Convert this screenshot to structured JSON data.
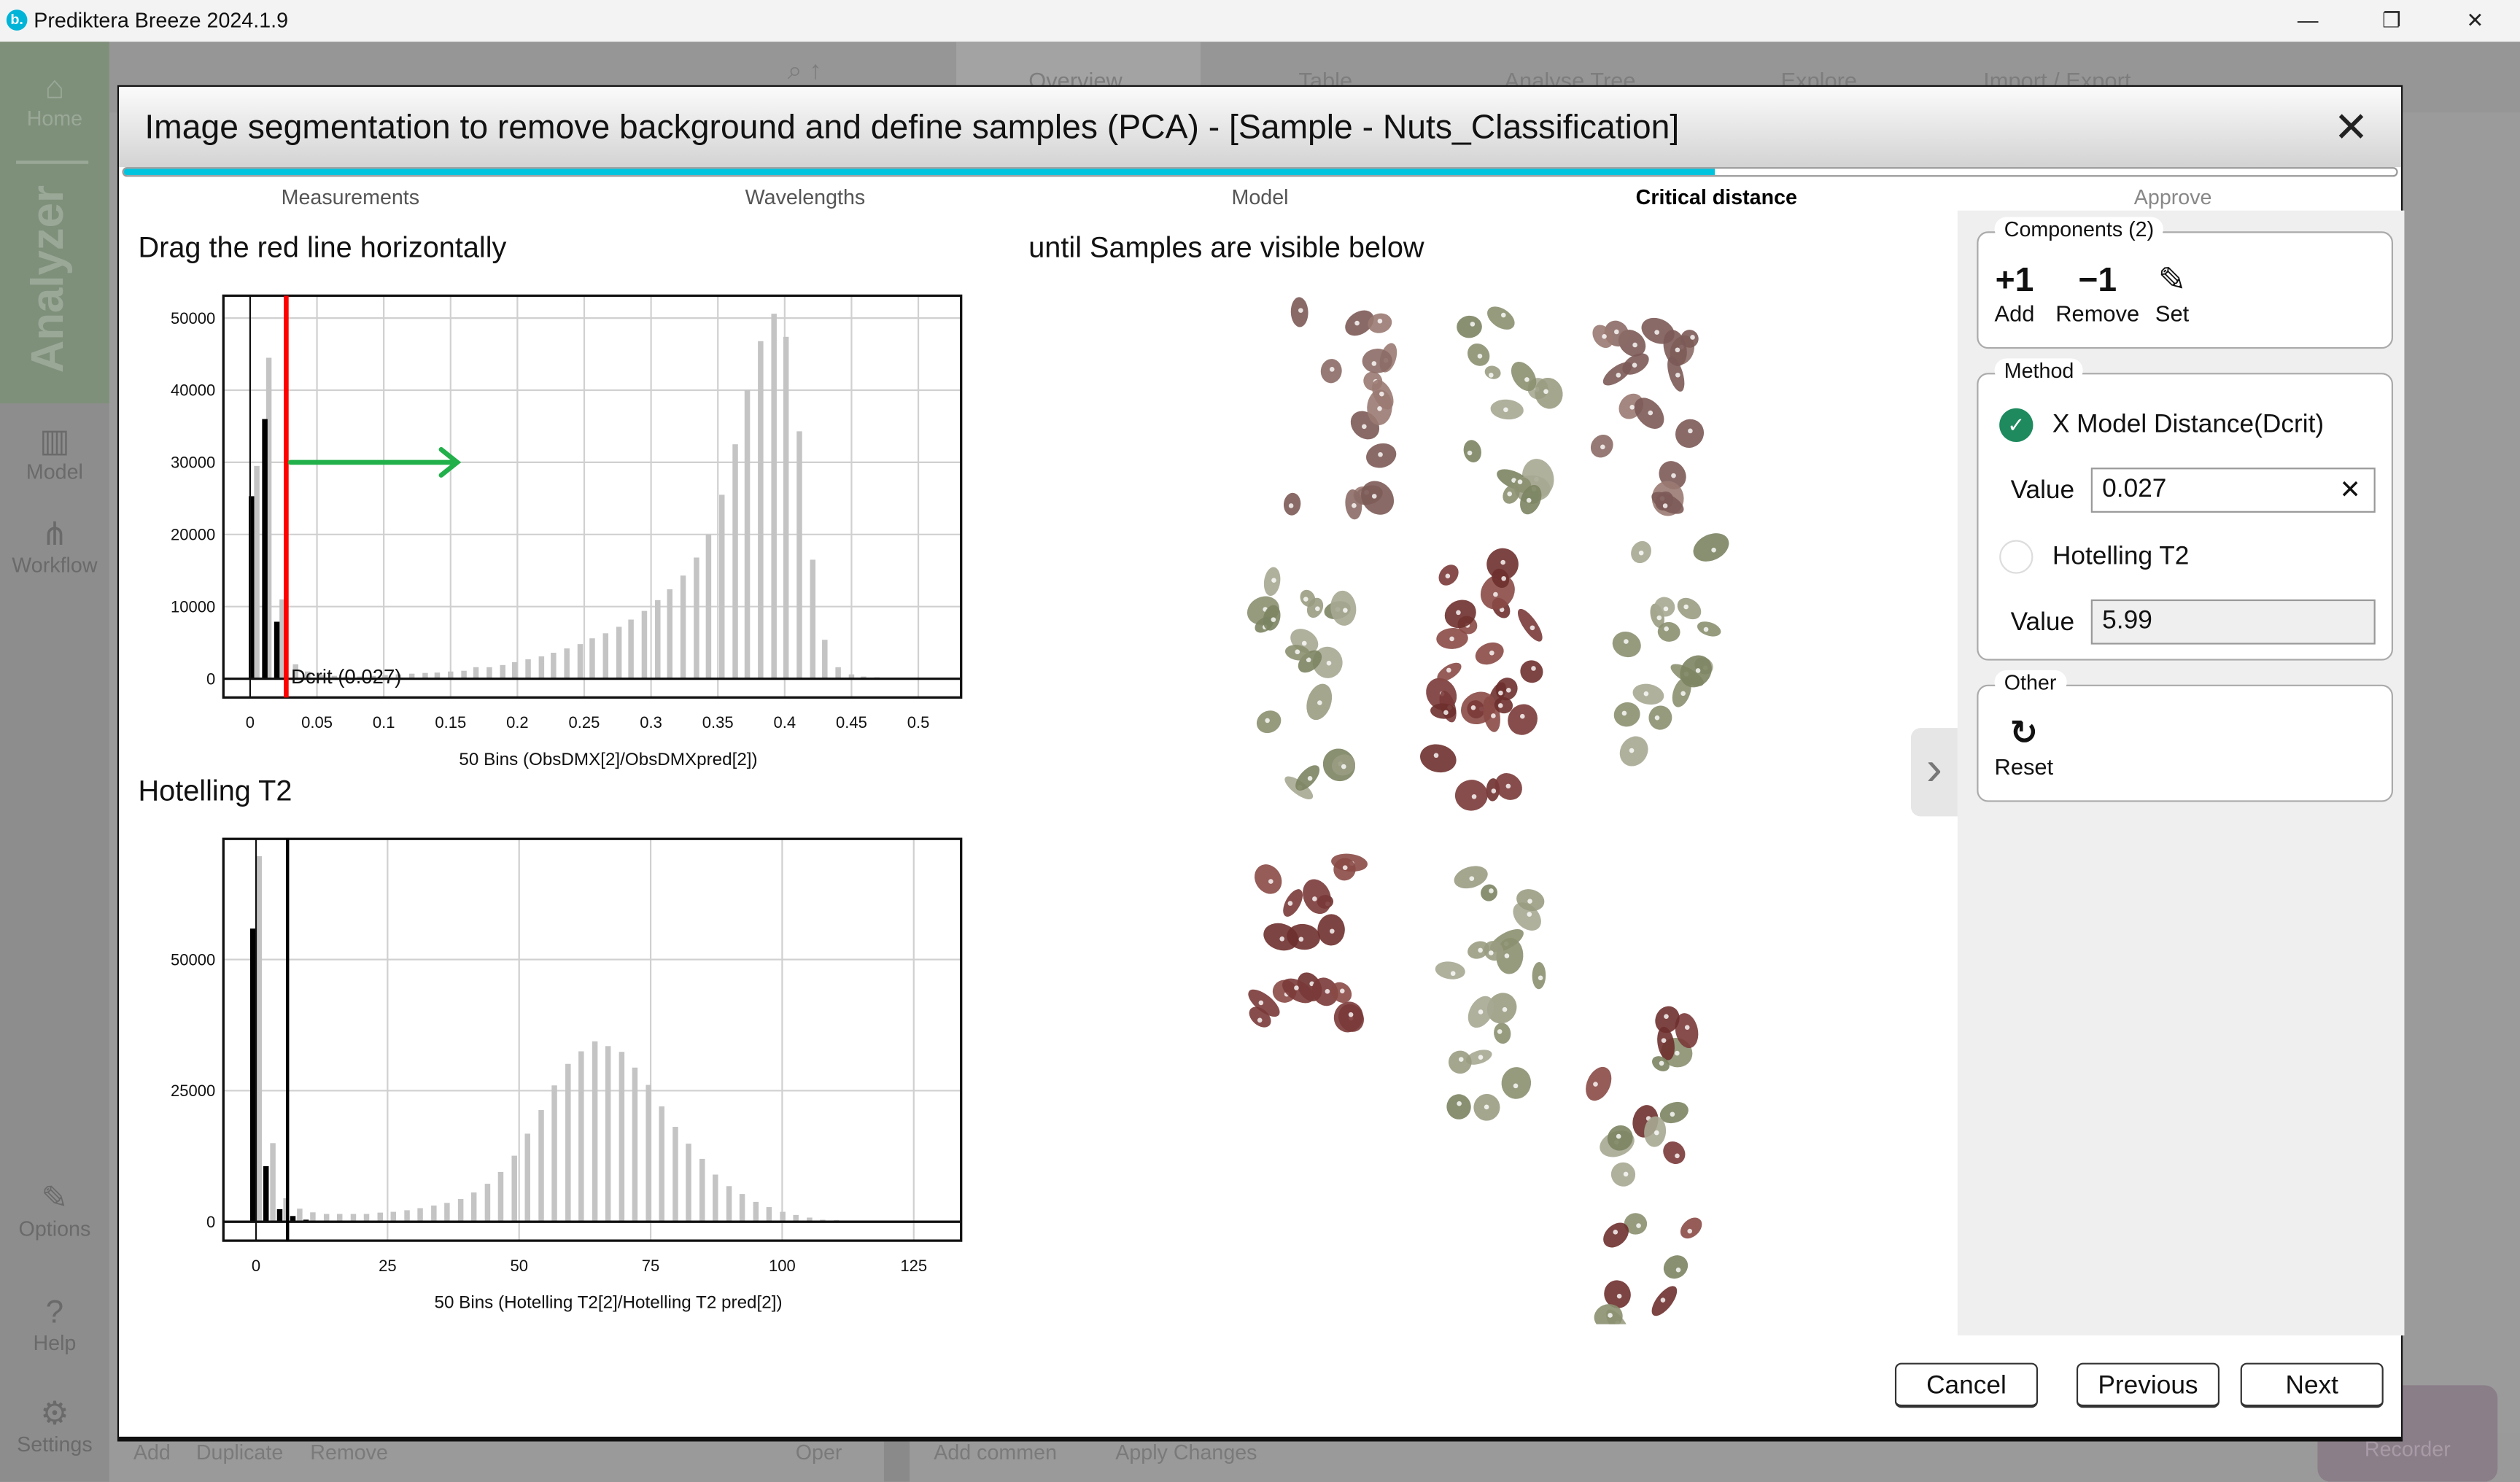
{
  "app": {
    "title": "Prediktera Breeze 2024.1.9",
    "logo_letter": "b.",
    "window_controls": {
      "minimize": "—",
      "maximize": "❐",
      "close": "✕"
    }
  },
  "background_app": {
    "sidebar": [
      {
        "label": "Home",
        "icon": "home-icon",
        "glyph": "⌂"
      },
      {
        "label": "Model",
        "icon": "chart-icon",
        "glyph": "▥"
      },
      {
        "label": "Workflow",
        "icon": "workflow-icon",
        "glyph": "⋔"
      },
      {
        "label": "Options",
        "icon": "pencil-icon",
        "glyph": "✎"
      },
      {
        "label": "Help",
        "icon": "help-icon",
        "glyph": "?"
      },
      {
        "label": "Settings",
        "icon": "gear-icon",
        "glyph": "⚙"
      }
    ],
    "analyzer_label": "Analyzer",
    "tabs": [
      "Overview",
      "Table",
      "Analyse Tree",
      "Explore",
      "Import / Export"
    ],
    "bottom_actions": [
      "Add",
      "Duplicate",
      "Remove",
      "Oper",
      "Add commen",
      "Apply Changes"
    ],
    "recorder_label": "Recorder"
  },
  "dialog": {
    "title": "Image segmentation to remove background and define samples (PCA) - [Sample - Nuts_Classification]",
    "close_glyph": "✕",
    "progress_percent": 70,
    "steps": [
      {
        "label": "Measurements",
        "active": false
      },
      {
        "label": "Wavelengths",
        "active": false
      },
      {
        "label": "Model",
        "active": false
      },
      {
        "label": "Critical distance",
        "active": true
      },
      {
        "label": "Approve",
        "active": false
      }
    ],
    "instruction_left": "Drag the red line horizontally",
    "instruction_right": "until Samples are visible below",
    "hotelling_heading": "Hotelling T2",
    "panel": {
      "components": {
        "label": "Components (2)",
        "add_glyph": "+1",
        "add": "Add",
        "remove_glyph": "−1",
        "remove": "Remove",
        "set_glyph": "✎",
        "set": "Set"
      },
      "method": {
        "label": "Method",
        "option1": "X Model Distance(Dcrit)",
        "option1_selected": true,
        "value1_label": "Value",
        "value1": "0.027",
        "clear_glyph": "✕",
        "option2": "Hotelling T2",
        "option2_selected": false,
        "value2_label": "Value",
        "value2": "5.99"
      },
      "other": {
        "label": "Other",
        "reset_glyph": "↻",
        "reset": "Reset"
      },
      "expand_glyph": "›"
    },
    "buttons": {
      "cancel": "Cancel",
      "previous": "Previous",
      "next": "Next"
    },
    "colors": {
      "accent": "#00c3dd",
      "selected_radio": "#1e8a5e",
      "crit_line": "#ff0000",
      "arrow": "#22b04a"
    }
  },
  "chart_data": [
    {
      "type": "bar",
      "xlabel": "50 Bins (ObsDMX[2]/ObsDMXpred[2])",
      "xlim": [
        -0.02,
        0.532
      ],
      "ylim": [
        -2600,
        53100
      ],
      "xticks": [
        "0",
        "0.05",
        "0.1",
        "0.15",
        "0.2",
        "0.25",
        "0.3",
        "0.35",
        "0.4",
        "0.45",
        "0.5"
      ],
      "yticks": [
        "0",
        "10000",
        "20000",
        "30000",
        "40000",
        "50000"
      ],
      "grid": true,
      "series": [
        {
          "color": "#c4c4c4",
          "x": [
            0.005,
            0.014,
            0.024,
            0.034,
            0.043,
            0.053,
            0.063,
            0.072,
            0.082,
            0.092,
            0.101,
            0.111,
            0.121,
            0.131,
            0.14,
            0.15,
            0.16,
            0.169,
            0.179,
            0.189,
            0.198,
            0.208,
            0.218,
            0.227,
            0.237,
            0.247,
            0.256,
            0.266,
            0.276,
            0.285,
            0.295,
            0.305,
            0.314,
            0.324,
            0.334,
            0.343,
            0.353,
            0.363,
            0.372,
            0.382,
            0.392,
            0.401,
            0.411,
            0.421,
            0.43,
            0.44,
            0.45,
            0.459,
            0.469,
            0.479
          ],
          "values": [
            29500,
            44500,
            11000,
            2000,
            1000,
            500,
            400,
            300,
            300,
            400,
            500,
            600,
            700,
            800,
            850,
            1000,
            1100,
            1600,
            1600,
            1900,
            2300,
            2700,
            3100,
            3600,
            4200,
            4800,
            5600,
            6300,
            7200,
            8200,
            9400,
            10900,
            12400,
            14300,
            16800,
            20000,
            25500,
            32500,
            40000,
            46800,
            50600,
            47400,
            34300,
            16500,
            5400,
            1600,
            600,
            300,
            200,
            100
          ]
        },
        {
          "color": "#000000",
          "x": [
            0.001,
            0.011,
            0.02
          ],
          "values": [
            25300,
            36000,
            7900
          ]
        }
      ],
      "critical_line": {
        "x": 0.027,
        "label": "Dcrit (0.027)",
        "color": "#ff0000"
      },
      "arrow": {
        "from_x": 0.03,
        "to_x": 0.155,
        "y": 30000
      }
    },
    {
      "type": "bar",
      "xlabel": "50 Bins (Hotelling T2[2]/Hotelling T2 pred[2])",
      "xlim": [
        -6.2,
        134
      ],
      "ylim": [
        -3600,
        73000
      ],
      "xticks": [
        "0",
        "25",
        "50",
        "75",
        "100",
        "125"
      ],
      "yticks": [
        "0",
        "25000",
        "50000"
      ],
      "grid": true,
      "series": [
        {
          "color": "#c4c4c4",
          "x": [
            0.6,
            3.2,
            5.7,
            8.3,
            10.8,
            13.4,
            15.9,
            18.5,
            21.0,
            23.6,
            26.1,
            28.7,
            31.2,
            33.8,
            36.3,
            38.9,
            41.4,
            44.0,
            46.5,
            49.1,
            51.6,
            54.2,
            56.7,
            59.3,
            61.8,
            64.4,
            66.9,
            69.5,
            72.0,
            74.6,
            77.1,
            79.7,
            82.2,
            84.8,
            87.3,
            89.9,
            92.4,
            95.0,
            97.5,
            100.1,
            102.6,
            105.2,
            107.7,
            110.3,
            112.8,
            115.4,
            117.9,
            120.5,
            123.0,
            125.6
          ],
          "values": [
            69700,
            15000,
            4500,
            2500,
            1800,
            1500,
            1500,
            1500,
            1500,
            1750,
            1900,
            2200,
            2600,
            3100,
            3600,
            4350,
            5600,
            7250,
            9500,
            12600,
            16800,
            21300,
            26000,
            30100,
            32500,
            34400,
            33500,
            32400,
            29400,
            26100,
            22000,
            18100,
            14900,
            12000,
            9000,
            6800,
            5300,
            3800,
            2800,
            1900,
            1300,
            800,
            400,
            300,
            100,
            0,
            0,
            0,
            0,
            0
          ]
        },
        {
          "color": "#000000",
          "x": [
            -0.6,
            1.9,
            4.5,
            7.0,
            9.5
          ],
          "values": [
            55900,
            10600,
            2400,
            1100,
            400
          ]
        }
      ],
      "critical_line": {
        "x": 5.99,
        "color": "#000000"
      }
    }
  ]
}
